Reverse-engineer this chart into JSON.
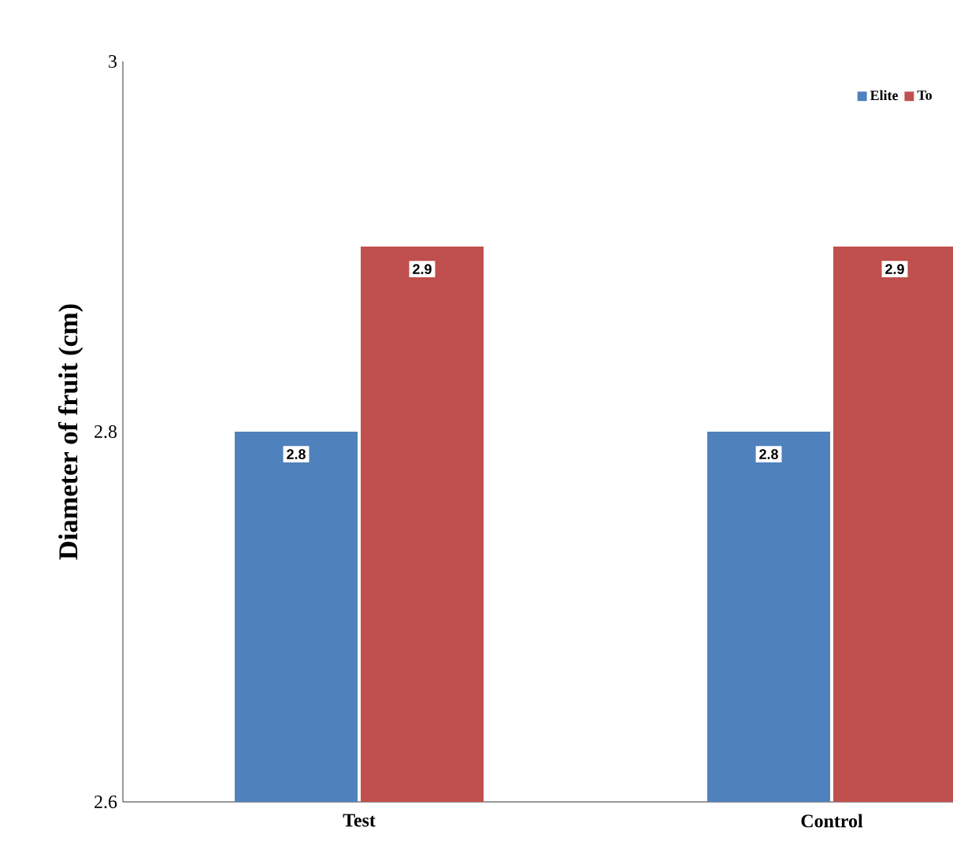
{
  "chart_data": {
    "type": "bar",
    "ylabel": "Diameter of fruit (cm)",
    "categories": [
      "Test",
      "Control"
    ],
    "series": [
      {
        "name": "Elite",
        "color": "#4f81bd",
        "values": [
          2.8,
          2.8
        ]
      },
      {
        "name": "To",
        "color": "#c0504d",
        "values": [
          2.9,
          2.9
        ]
      }
    ],
    "ylim": [
      2.6,
      3
    ],
    "yticks": [
      2.6,
      2.8,
      3
    ],
    "data_labels": true,
    "legend": "top right",
    "grid": false
  }
}
